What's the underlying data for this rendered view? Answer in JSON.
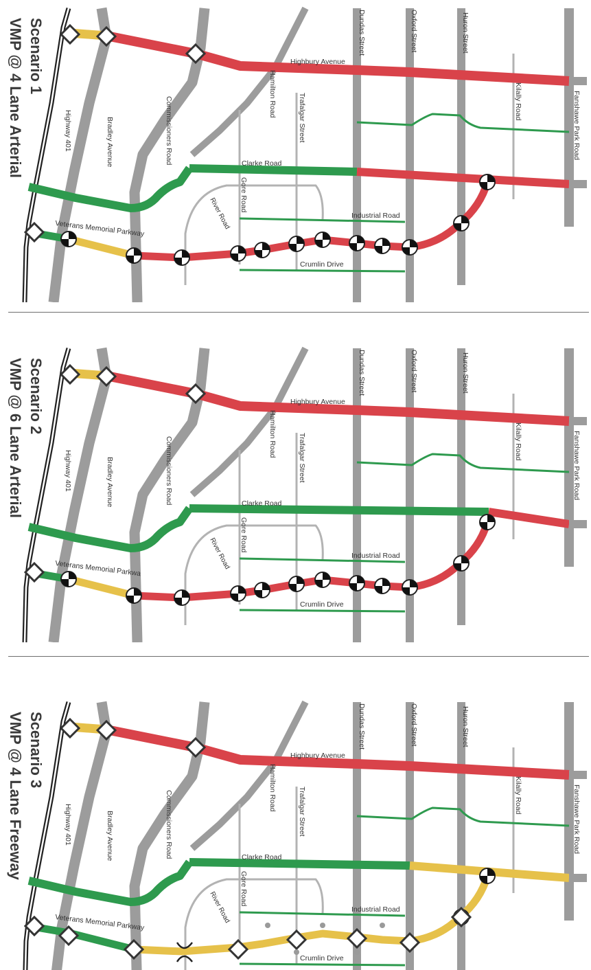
{
  "colors": {
    "red": "#d9434a",
    "green": "#2e9a4e",
    "yellow": "#e6c14a",
    "road_gray": "#9c9c9c",
    "minor_gray": "#b3b3b3",
    "highway": "#222222"
  },
  "roads": {
    "highway_401": "Highway 401",
    "bradley": "Bradley Avenue",
    "commissioners": "Commissioners Road",
    "hamilton": "Hamilton Road",
    "highbury": "Highbury Avenue",
    "trafalgar": "Trafalgar Street",
    "dundas": "Dundas Street",
    "oxford": "Oxford Street",
    "huron": "Huron Street",
    "kilally": "Kilally Road",
    "fanshawe": "Fanshawe Park Road",
    "clarke": "Clarke Road",
    "gore": "Gore Road",
    "river": "River Road",
    "industrial": "Industrial Road",
    "crumlin": "Crumlin Drive"
  },
  "scenarios": [
    {
      "title_line1": "Scenario 1",
      "title_line2": "VMP @ 4 Lane Arterial",
      "vmp_label": "Veterans Memorial Parkway",
      "freeway": false,
      "top": {
        "north_left": "yellow",
        "north_main": "red",
        "clarke_west": "green",
        "clarke_east": "red",
        "clarke_east_start": "dundas"
      },
      "vmp": {
        "seg_a": "green",
        "seg_b": "yellow",
        "seg_c": "red"
      }
    },
    {
      "title_line1": "Scenario 2",
      "title_line2": "VMP @ 6 Lane Arterial",
      "vmp_label": "Veterans Memorial Parkwa",
      "freeway": false,
      "top": {
        "north_left": "yellow",
        "north_main": "red",
        "clarke_west": "green",
        "clarke_east": "red",
        "clarke_east_start": "huron"
      },
      "vmp": {
        "seg_a": "green",
        "seg_b": "yellow",
        "seg_c": "red"
      }
    },
    {
      "title_line1": "Scenario 3",
      "title_line2": "VMP @ 4 Lane Freeway",
      "vmp_label": "Veterans Memorial Parkway",
      "freeway": true,
      "top": {
        "north_left": "yellow",
        "north_main": "red",
        "clarke_west": "green",
        "clarke_east": "yellow",
        "clarke_east_start": "oxford"
      },
      "vmp": {
        "seg_a": "green",
        "seg_b": "green",
        "seg_c": "yellow"
      }
    }
  ]
}
